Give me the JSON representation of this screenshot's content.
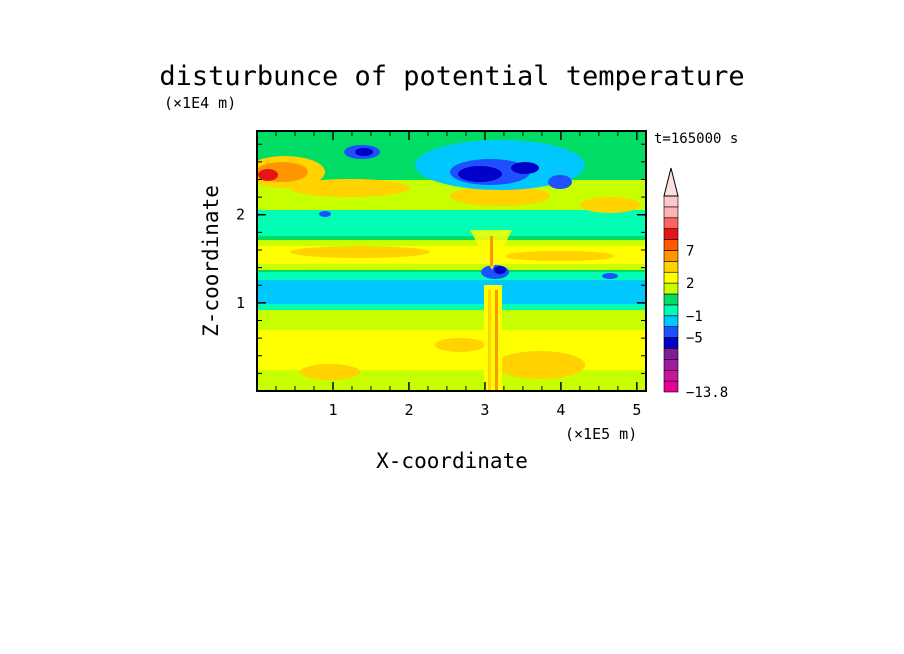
{
  "chart_data": {
    "type": "heatmap",
    "title": "disturbunce of potential temperature",
    "xlabel": "X-coordinate",
    "ylabel": "Z-coordinate",
    "x_scale_label": "(×1E5 m)",
    "y_scale_label": "(×1E4 m)",
    "time_label": "t=165000 s",
    "xlim": [
      0,
      5.12
    ],
    "ylim": [
      0,
      2.95
    ],
    "x_ticks": [
      1,
      2,
      3,
      4,
      5
    ],
    "x_tick_labels": [
      "1",
      "2",
      "3",
      "4",
      "5"
    ],
    "y_ticks": [
      1,
      2
    ],
    "y_tick_labels": [
      "1",
      "2"
    ],
    "colorbar": {
      "colors": [
        "#e60096",
        "#c8169b",
        "#a01c9c",
        "#7f1c9c",
        "#0000c8",
        "#1e50ff",
        "#00c8ff",
        "#00ffb4",
        "#00dc64",
        "#c8ff00",
        "#ffff00",
        "#ffd200",
        "#ff9600",
        "#ff5a00",
        "#e61414",
        "#ff6464",
        "#ffb4b4",
        "#ffc8c8"
      ],
      "labels": [
        {
          "text": "−13.8",
          "level": 0
        },
        {
          "text": "−5",
          "level": 5
        },
        {
          "text": "−1",
          "level": 7
        },
        {
          "text": "2",
          "level": 10
        },
        {
          "text": "7",
          "level": 13
        }
      ]
    },
    "features": [
      {
        "name": "warm-band-top-left",
        "x": 0.3,
        "z": 2.45,
        "value": 5
      },
      {
        "name": "cold-core-upper",
        "x": 3.1,
        "z": 2.5,
        "value": -5
      },
      {
        "name": "cold-core-left",
        "x": 1.4,
        "z": 2.65,
        "value": -5
      },
      {
        "name": "cold-band-mid",
        "x": 2.6,
        "z": 1.25,
        "value": -1
      },
      {
        "name": "plume-column",
        "x": 3.1,
        "z": 0.6,
        "value": 3
      }
    ]
  }
}
